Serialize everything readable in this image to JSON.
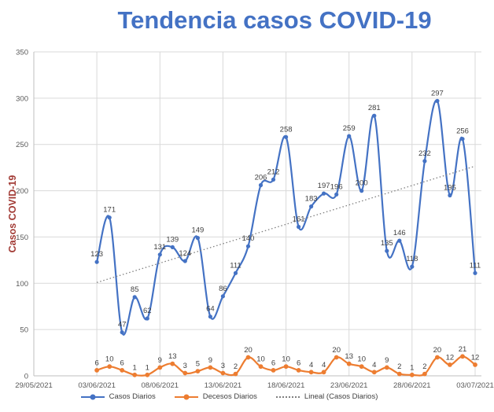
{
  "chart_data": {
    "type": "line",
    "title": "Tendencia casos COVID-19",
    "ylabel": "Casos  COVID-19",
    "xlabel": "",
    "ylim": [
      0,
      350
    ],
    "y_ticks": [
      0,
      50,
      100,
      150,
      200,
      250,
      300,
      350
    ],
    "x_tick_labels": [
      "29/05/2021",
      "03/06/2021",
      "08/06/2021",
      "13/06/2021",
      "18/06/2021",
      "23/06/2021",
      "28/06/2021",
      "03/07/2021"
    ],
    "grid": true,
    "smooth_lines": true,
    "legend_position": "bottom",
    "data_labels": true,
    "categories": [
      "03/06/2021",
      "04/06/2021",
      "05/06/2021",
      "06/06/2021",
      "07/06/2021",
      "08/06/2021",
      "09/06/2021",
      "10/06/2021",
      "11/06/2021",
      "12/06/2021",
      "13/06/2021",
      "14/06/2021",
      "15/06/2021",
      "16/06/2021",
      "17/06/2021",
      "18/06/2021",
      "19/06/2021",
      "20/06/2021",
      "21/06/2021",
      "22/06/2021",
      "23/06/2021",
      "24/06/2021",
      "25/06/2021",
      "26/06/2021",
      "27/06/2021",
      "28/06/2021",
      "29/06/2021",
      "30/06/2021",
      "01/07/2021",
      "02/07/2021",
      "03/07/2021"
    ],
    "series": [
      {
        "name": "Casos Diarios",
        "color": "#4472C4",
        "marker": "circle",
        "values": [
          123,
          171,
          47,
          85,
          62,
          131,
          139,
          124,
          149,
          64,
          86,
          111,
          140,
          206,
          212,
          258,
          161,
          183,
          197,
          196,
          259,
          200,
          281,
          135,
          146,
          118,
          232,
          297,
          195,
          256,
          111
        ]
      },
      {
        "name": "Decesos Diarios",
        "color": "#ED7D31",
        "marker": "circle",
        "values": [
          6,
          10,
          6,
          1,
          1,
          9,
          13,
          3,
          5,
          9,
          3,
          2,
          20,
          10,
          6,
          10,
          6,
          4,
          4,
          20,
          13,
          10,
          4,
          9,
          2,
          1,
          2,
          20,
          12,
          21,
          12
        ]
      }
    ],
    "trendline": {
      "name": "Lineal (Casos Diarios)",
      "of_series": "Casos Diarios",
      "style": "dotted",
      "color": "#7F7F7F"
    }
  },
  "colors": {
    "title": "#4472C4",
    "y_axis_title": "#A23B35",
    "axis_text": "#595959",
    "data_label_text": "#3F3F3F",
    "gridline": "#D9D9D9",
    "axis_line": "#BFBFBF",
    "casos_diarios": "#4472C4",
    "decesos_diarios": "#ED7D31",
    "trendline": "#7F7F7F"
  }
}
